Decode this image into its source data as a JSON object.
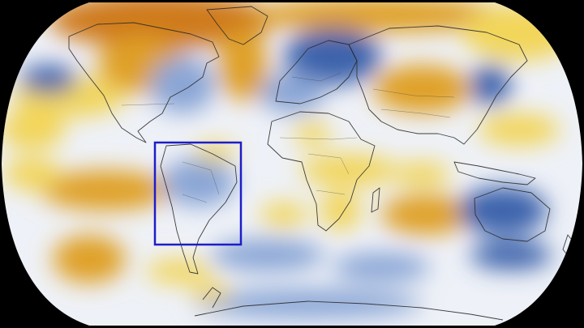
{
  "map": {
    "projection": "robinson",
    "background_color": "#000000",
    "palette": {
      "cool_strong": "#3d64ac",
      "cool": "#8aa6d6",
      "neutral": "#eef1f7",
      "warm": "#f2d55a",
      "warm_strong": "#dfa025",
      "hot": "#cf7a1e"
    },
    "highlight": {
      "region": "South America",
      "color": "#1d1dc8"
    }
  }
}
